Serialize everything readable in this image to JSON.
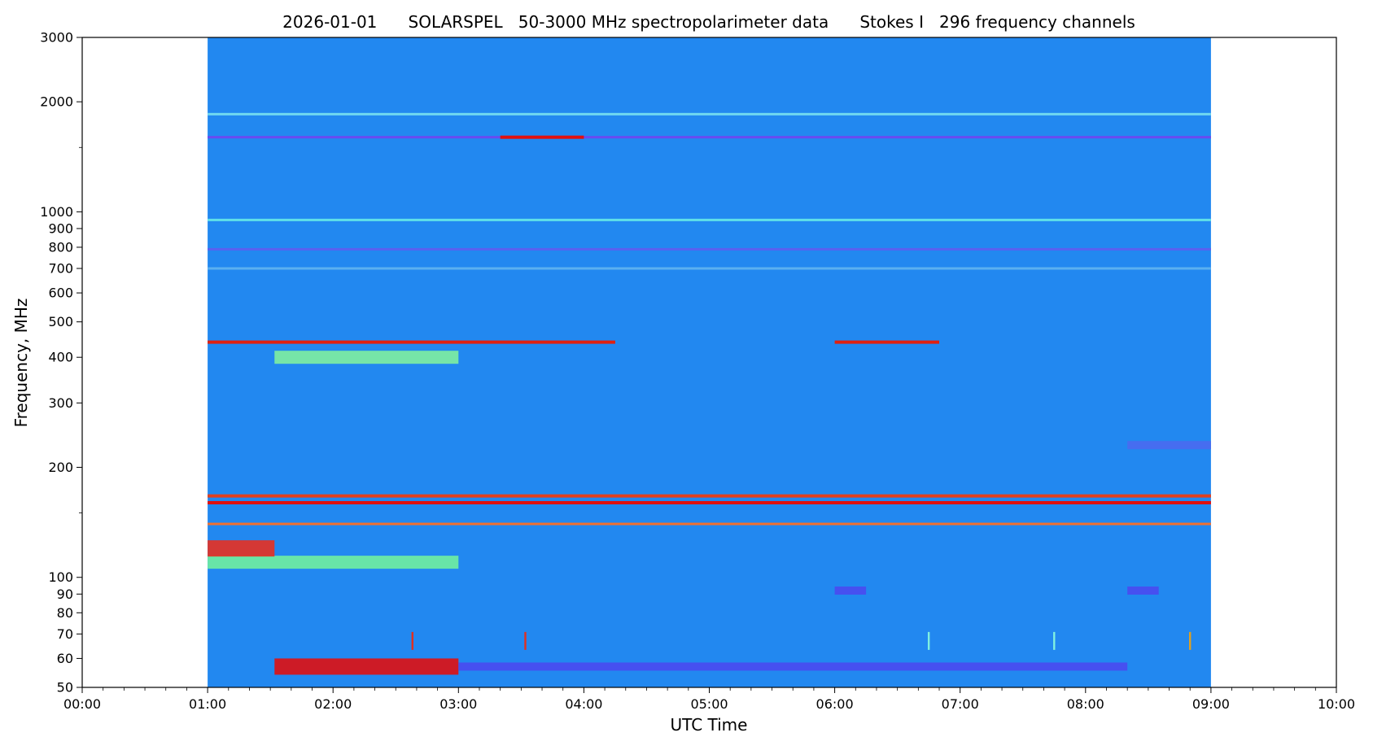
{
  "chart_data": {
    "type": "heatmap",
    "title": "2026-01-01      SOLARSPEL   50-3000 MHz spectropolarimeter data      Stokes I   296 frequency channels",
    "xlabel": "UTC Time",
    "ylabel": "Frequency, MHz",
    "x_axis": {
      "range": [
        "00:00",
        "10:00"
      ],
      "ticks": [
        "00:00",
        "01:00",
        "02:00",
        "03:00",
        "04:00",
        "05:00",
        "06:00",
        "07:00",
        "08:00",
        "09:00",
        "10:00"
      ],
      "data_coverage": [
        "01:00",
        "09:00"
      ]
    },
    "y_axis": {
      "scale": "log",
      "range": [
        50,
        3000
      ],
      "unit": "MHz",
      "labeled_ticks": [
        50,
        60,
        70,
        80,
        90,
        100,
        200,
        300,
        400,
        500,
        600,
        700,
        800,
        900,
        1000,
        2000,
        3000
      ],
      "minor_ticks": [
        150,
        1500
      ]
    },
    "colormap": "jet",
    "grid": false,
    "background_color": "#2288f0",
    "features": [
      {
        "kind": "band",
        "freq_mhz": 57,
        "start": "01:32",
        "end": "03:00",
        "intensity": "high",
        "color": "#e01010"
      },
      {
        "kind": "band",
        "freq_mhz": 57,
        "start": "03:00",
        "end": "08:20",
        "intensity": "low",
        "color": "#4a4af0"
      },
      {
        "kind": "band",
        "freq_mhz": 110,
        "start": "01:00",
        "end": "03:00",
        "intensity": "medium",
        "color": "#70f0a0"
      },
      {
        "kind": "band",
        "freq_mhz": 120,
        "start": "01:00",
        "end": "01:32",
        "intensity": "high",
        "color": "#e83020"
      },
      {
        "kind": "line",
        "freq_mhz": 160,
        "start": "01:00",
        "end": "09:00",
        "intensity": "high",
        "color": "#e01010"
      },
      {
        "kind": "line",
        "freq_mhz": 167,
        "start": "01:00",
        "end": "09:00",
        "intensity": "high",
        "color": "#e04020"
      },
      {
        "kind": "line",
        "freq_mhz": 140,
        "start": "01:00",
        "end": "09:00",
        "intensity": "medium",
        "color": "#f07030"
      },
      {
        "kind": "band",
        "freq_mhz": 400,
        "start": "01:32",
        "end": "03:00",
        "intensity": "medium",
        "color": "#80f0a0"
      },
      {
        "kind": "line",
        "freq_mhz": 440,
        "start": "01:00",
        "end": "04:15",
        "intensity": "high",
        "color": "#e02010"
      },
      {
        "kind": "line",
        "freq_mhz": 440,
        "start": "06:00",
        "end": "06:50",
        "intensity": "high",
        "color": "#e02010"
      },
      {
        "kind": "line",
        "freq_mhz": 1600,
        "start": "01:00",
        "end": "09:00",
        "intensity": "low",
        "color": "#6a4af0"
      },
      {
        "kind": "line",
        "freq_mhz": 1600,
        "start": "03:20",
        "end": "04:00",
        "intensity": "high",
        "color": "#e01010"
      },
      {
        "kind": "line",
        "freq_mhz": 1850,
        "start": "01:00",
        "end": "09:00",
        "intensity": "medium",
        "color": "#70d8f0"
      },
      {
        "kind": "line",
        "freq_mhz": 950,
        "start": "01:00",
        "end": "09:00",
        "intensity": "medium",
        "color": "#60e0e8"
      },
      {
        "kind": "line",
        "freq_mhz": 790,
        "start": "01:00",
        "end": "09:00",
        "intensity": "low",
        "color": "#5a60f0"
      },
      {
        "kind": "line",
        "freq_mhz": 700,
        "start": "01:00",
        "end": "09:00",
        "intensity": "low",
        "color": "#5ab0f0"
      },
      {
        "kind": "band",
        "freq_mhz": 92,
        "start": "06:00",
        "end": "06:15",
        "intensity": "low",
        "color": "#4a4af0"
      },
      {
        "kind": "band",
        "freq_mhz": 92,
        "start": "08:20",
        "end": "08:35",
        "intensity": "low",
        "color": "#4a4af0"
      },
      {
        "kind": "band",
        "freq_mhz": 230,
        "start": "08:20",
        "end": "09:00",
        "intensity": "low",
        "color": "#4a6af0"
      },
      {
        "kind": "spike",
        "freq_mhz": 67,
        "time": "02:38",
        "color": "#e03020"
      },
      {
        "kind": "spike",
        "freq_mhz": 67,
        "time": "03:32",
        "color": "#e03020"
      },
      {
        "kind": "spike",
        "freq_mhz": 67,
        "time": "06:45",
        "color": "#80f0e0"
      },
      {
        "kind": "spike",
        "freq_mhz": 67,
        "time": "07:45",
        "color": "#80f0e0"
      },
      {
        "kind": "spike",
        "freq_mhz": 67,
        "time": "08:50",
        "color": "#e0a020"
      }
    ]
  }
}
